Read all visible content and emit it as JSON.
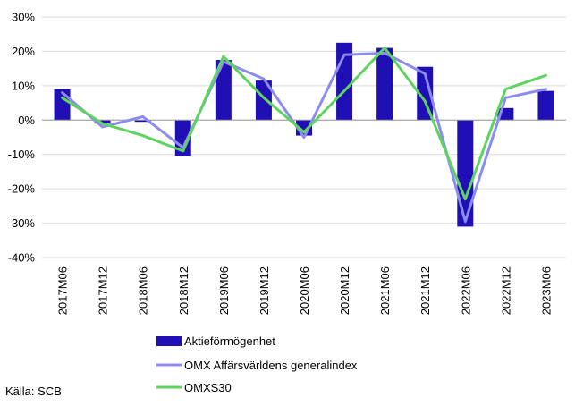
{
  "colors": {
    "bar": "#1f0fb5",
    "omx_line": "#8c8cf0",
    "omxs30_line": "#5fd35f",
    "grid": "#d9d9d9",
    "axis": "#999999"
  },
  "chart_data": {
    "type": "bar",
    "categories": [
      "2017M06",
      "2017M12",
      "2018M06",
      "2018M12",
      "2019M06",
      "2019M12",
      "2020M06",
      "2020M12",
      "2021M06",
      "2021M12",
      "2022M06",
      "2022M12",
      "2023M06"
    ],
    "ylim": [
      -40,
      30
    ],
    "yticks": [
      30,
      20,
      10,
      0,
      -10,
      -20,
      -30,
      -40
    ],
    "ytick_labels": [
      "30%",
      "20%",
      "10%",
      "0%",
      "-10%",
      "-20%",
      "-30%",
      "-40%"
    ],
    "grid": true,
    "legend_position": "bottom",
    "series": [
      {
        "name": "Aktieförmögenhet",
        "kind": "bar",
        "values": [
          9,
          -1,
          -0.5,
          -10.5,
          17.5,
          11.5,
          -4.5,
          22.5,
          21,
          15.5,
          -31,
          3.5,
          8.5
        ]
      },
      {
        "name": "OMX Affärsvärldens generalindex",
        "kind": "line",
        "values": [
          8,
          -2,
          1,
          -8,
          17,
          12,
          -5,
          19,
          19.5,
          13.5,
          -29.5,
          6.5,
          9
        ]
      },
      {
        "name": "OMXS30",
        "kind": "line",
        "values": [
          6.5,
          -1,
          -4.5,
          -9,
          18.5,
          6.5,
          -3.5,
          8.5,
          21,
          5.5,
          -23,
          9,
          13
        ]
      }
    ]
  },
  "source": "Källa: SCB"
}
